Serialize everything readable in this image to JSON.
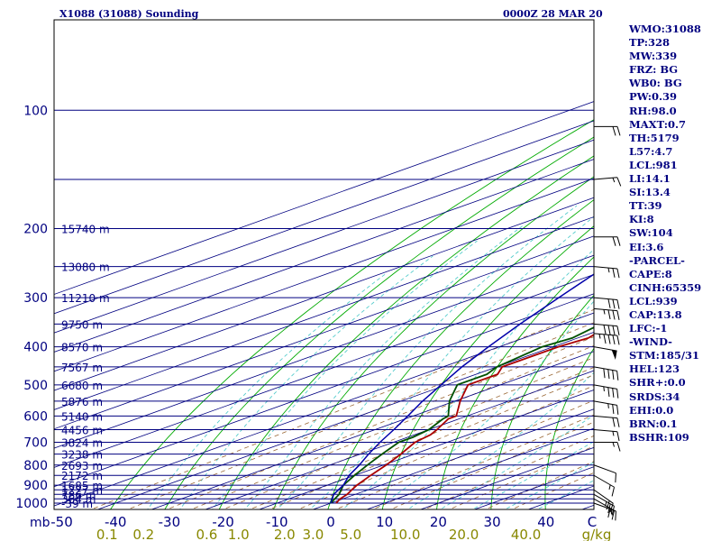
{
  "header": {
    "station_title": "X1088 (31088) Sounding",
    "time": "0000Z 28 MAR 20"
  },
  "indices": [
    "WMO:31088",
    "TP:328",
    "MW:339",
    "FRZ: BG",
    "WB0: BG",
    "PW:0.39",
    "RH:98.0",
    "MAXT:0.7",
    "TH:5179",
    "L57:4.7",
    "LCL:981",
    "LI:14.1",
    "SI:13.4",
    "TT:39",
    "KI:8",
    "SW:104",
    "EI:3.6",
    "-PARCEL-",
    "CAPE:8",
    "CINH:65359",
    "LCL:939",
    "CAP:13.8",
    "LFC:-1",
    "-WIND-",
    "STM:185/31",
    "HEL:123",
    "SHR+:0.0",
    "SRDS:34",
    "EHI:0.0",
    "BRN:0.1",
    "BSHR:109"
  ],
  "colors": {
    "isobar": "#000080",
    "isotherm": "#000080",
    "dry_adiabat": "#00aa00",
    "moist_adiabat": "#55cccc",
    "mixing_ratio": "#996633",
    "temperature": "#aa0000",
    "dewpoint": "#005000",
    "parcel": "#0000aa",
    "text": "#000080",
    "wind_barb": "#000000",
    "x_label_temp": "#000080",
    "x_label_mixing": "#888800"
  },
  "chart_data": {
    "type": "line",
    "title": "X1088 (31088) Sounding",
    "plot": "skew-T log-P",
    "x_axis_unit_label": "mb",
    "y_axis": "pressure (mb), log scale",
    "pressure_labels": [
      100,
      200,
      300,
      400,
      500,
      600,
      700,
      800,
      900,
      1000
    ],
    "temperature_ticks": [
      -50,
      -40,
      -30,
      -20,
      -10,
      0,
      10,
      20,
      30,
      40
    ],
    "temp_corner_label": "C",
    "mixing_ratio_labels": [
      "0.1",
      "0.2",
      "0.6",
      "1.0",
      "2.0",
      "3.0",
      "5.0",
      "10.0",
      "20.0",
      "40.0"
    ],
    "mixing_ratio_unit": "g/kg",
    "height_labels": [
      {
        "p": 1000,
        "label": "-39 m"
      },
      {
        "p": 975,
        "label": "364 m"
      },
      {
        "p": 950,
        "label": "786 m"
      },
      {
        "p": 925,
        "label": "1227 m"
      },
      {
        "p": 900,
        "label": "1685 m"
      },
      {
        "p": 850,
        "label": "2172 m"
      },
      {
        "p": 800,
        "label": "2693 m"
      },
      {
        "p": 750,
        "label": "3238 m"
      },
      {
        "p": 700,
        "label": "3824 m"
      },
      {
        "p": 650,
        "label": "4456 m"
      },
      {
        "p": 600,
        "label": "5140 m"
      },
      {
        "p": 550,
        "label": "5876 m"
      },
      {
        "p": 500,
        "label": "6680 m"
      },
      {
        "p": 450,
        "label": "7567 m"
      },
      {
        "p": 400,
        "label": "8570 m"
      },
      {
        "p": 350,
        "label": "9750 m"
      },
      {
        "p": 300,
        "label": "11210 m"
      },
      {
        "p": 250,
        "label": "13080 m"
      },
      {
        "p": 200,
        "label": "15740 m"
      }
    ],
    "series": [
      {
        "name": "temperature",
        "points": [
          {
            "p": 1000,
            "t": 1
          },
          {
            "p": 975,
            "t": -0.5
          },
          {
            "p": 950,
            "t": -1.5
          },
          {
            "p": 925,
            "t": -3
          },
          {
            "p": 900,
            "t": -4.5
          },
          {
            "p": 850,
            "t": -7
          },
          {
            "p": 800,
            "t": -9.5
          },
          {
            "p": 750,
            "t": -12.5
          },
          {
            "p": 700,
            "t": -16
          },
          {
            "p": 670,
            "t": -17
          },
          {
            "p": 650,
            "t": -18.5
          },
          {
            "p": 610,
            "t": -22
          },
          {
            "p": 600,
            "t": -22
          },
          {
            "p": 550,
            "t": -29
          },
          {
            "p": 500,
            "t": -36
          },
          {
            "p": 470,
            "t": -36
          },
          {
            "p": 450,
            "t": -39
          },
          {
            "p": 400,
            "t": -39
          },
          {
            "p": 380,
            "t": -38
          },
          {
            "p": 350,
            "t": -41
          },
          {
            "p": 320,
            "t": -36
          },
          {
            "p": 300,
            "t": -36
          },
          {
            "p": 290,
            "t": -35
          },
          {
            "p": 270,
            "t": -33
          },
          {
            "p": 250,
            "t": -33
          },
          {
            "p": 230,
            "t": -33.5
          },
          {
            "p": 210,
            "t": -34
          },
          {
            "p": 200,
            "t": -34
          },
          {
            "p": 190,
            "t": -35
          },
          {
            "p": 180,
            "t": -35.5
          },
          {
            "p": 170,
            "t": -36
          },
          {
            "p": 160,
            "t": -36
          },
          {
            "p": 150,
            "t": -36.5
          },
          {
            "p": 140,
            "t": -37
          },
          {
            "p": 130,
            "t": -40
          },
          {
            "p": 120,
            "t": -44
          },
          {
            "p": 115,
            "t": -41
          },
          {
            "p": 110,
            "t": -46
          },
          {
            "p": 105,
            "t": -50
          },
          {
            "p": 100,
            "t": -54
          }
        ]
      },
      {
        "name": "dewpoint",
        "points": [
          {
            "p": 1000,
            "t": 0
          },
          {
            "p": 975,
            "t": -1.5
          },
          {
            "p": 950,
            "t": -3
          },
          {
            "p": 925,
            "t": -5
          },
          {
            "p": 900,
            "t": -7
          },
          {
            "p": 850,
            "t": -10
          },
          {
            "p": 800,
            "t": -13
          },
          {
            "p": 750,
            "t": -16
          },
          {
            "p": 700,
            "t": -19
          },
          {
            "p": 680,
            "t": -19
          },
          {
            "p": 650,
            "t": -20
          },
          {
            "p": 610,
            "t": -23
          },
          {
            "p": 600,
            "t": -23.5
          },
          {
            "p": 550,
            "t": -31
          },
          {
            "p": 500,
            "t": -38
          },
          {
            "p": 470,
            "t": -38
          },
          {
            "p": 450,
            "t": -40
          },
          {
            "p": 400,
            "t": -42
          },
          {
            "p": 380,
            "t": -41
          },
          {
            "p": 350,
            "t": -43
          },
          {
            "p": 320,
            "t": -39
          },
          {
            "p": 300,
            "t": -38
          },
          {
            "p": 290,
            "t": -37
          },
          {
            "p": 270,
            "t": -35.5
          },
          {
            "p": 250,
            "t": -36
          },
          {
            "p": 230,
            "t": -37
          },
          {
            "p": 210,
            "t": -37
          },
          {
            "p": 200,
            "t": -37.5
          },
          {
            "p": 190,
            "t": -38
          },
          {
            "p": 180,
            "t": -39
          },
          {
            "p": 170,
            "t": -40
          },
          {
            "p": 160,
            "t": -40
          },
          {
            "p": 150,
            "t": -41
          },
          {
            "p": 140,
            "t": -42
          },
          {
            "p": 130,
            "t": -45
          },
          {
            "p": 120,
            "t": -48
          },
          {
            "p": 110,
            "t": -52
          },
          {
            "p": 100,
            "t": -56
          }
        ]
      },
      {
        "name": "parcel",
        "points": [
          {
            "p": 1000,
            "t": 0
          },
          {
            "p": 950,
            "t": -4
          },
          {
            "p": 900,
            "t": -7
          },
          {
            "p": 850,
            "t": -11
          },
          {
            "p": 800,
            "t": -14.5
          },
          {
            "p": 750,
            "t": -18.5
          },
          {
            "p": 700,
            "t": -22.5
          },
          {
            "p": 650,
            "t": -26.5
          },
          {
            "p": 600,
            "t": -31
          },
          {
            "p": 550,
            "t": -36
          },
          {
            "p": 500,
            "t": -41
          },
          {
            "p": 450,
            "t": -46.5
          },
          {
            "p": 400,
            "t": -52
          },
          {
            "p": 350,
            "t": -58
          },
          {
            "p": 300,
            "t": -64.5
          },
          {
            "p": 250,
            "t": -72
          },
          {
            "p": 200,
            "t": -80
          },
          {
            "p": 180,
            "t": -84
          },
          {
            "p": 160,
            "t": -88
          },
          {
            "p": 140,
            "t": -92
          },
          {
            "p": 120,
            "t": -97
          },
          {
            "p": 110,
            "t": -99.5
          }
        ]
      }
    ],
    "winds": [
      {
        "p": 1000,
        "dir": 290,
        "spd": 15
      },
      {
        "p": 975,
        "dir": 300,
        "spd": 20
      },
      {
        "p": 950,
        "dir": 300,
        "spd": 25
      },
      {
        "p": 925,
        "dir": 305,
        "spd": 20
      },
      {
        "p": 850,
        "dir": 300,
        "spd": 15
      },
      {
        "p": 800,
        "dir": 290,
        "spd": 10
      },
      {
        "p": 700,
        "dir": 270,
        "spd": 15
      },
      {
        "p": 650,
        "dir": 275,
        "spd": 15
      },
      {
        "p": 600,
        "dir": 275,
        "spd": 20
      },
      {
        "p": 550,
        "dir": 280,
        "spd": 25
      },
      {
        "p": 500,
        "dir": 280,
        "spd": 35
      },
      {
        "p": 450,
        "dir": 280,
        "spd": 40
      },
      {
        "p": 400,
        "dir": 280,
        "spd": 50
      },
      {
        "p": 370,
        "dir": 275,
        "spd": 45
      },
      {
        "p": 350,
        "dir": 275,
        "spd": 40
      },
      {
        "p": 320,
        "dir": 275,
        "spd": 35
      },
      {
        "p": 300,
        "dir": 275,
        "spd": 30
      },
      {
        "p": 250,
        "dir": 275,
        "spd": 25
      },
      {
        "p": 210,
        "dir": 270,
        "spd": 20
      },
      {
        "p": 150,
        "dir": 265,
        "spd": 15
      },
      {
        "p": 110,
        "dir": 270,
        "spd": 20
      }
    ]
  }
}
